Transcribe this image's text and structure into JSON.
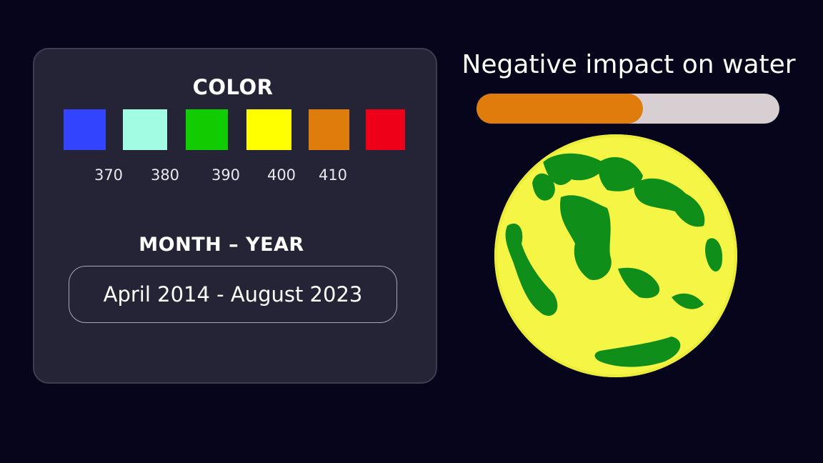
{
  "legend": {
    "title": "COLOR",
    "swatches": [
      {
        "color": "#3344ff"
      },
      {
        "color": "#a2fce4"
      },
      {
        "color": "#10cc00"
      },
      {
        "color": "#ffff00"
      },
      {
        "color": "#df7d0c"
      },
      {
        "color": "#ee0018"
      }
    ],
    "ticks": [
      "370",
      "380",
      "390",
      "400",
      "410"
    ]
  },
  "period": {
    "title": "MONTH – YEAR",
    "value": "April 2014 - August 2023"
  },
  "impact": {
    "title": "Negative impact on water",
    "level_fraction": 0.55,
    "fill_color": "#e07c0c",
    "track_color": "#d7cfd1"
  },
  "globe": {
    "icon": "earth-globe",
    "ocean_color": "#f5f545",
    "land_color": "#0f8f1a"
  }
}
